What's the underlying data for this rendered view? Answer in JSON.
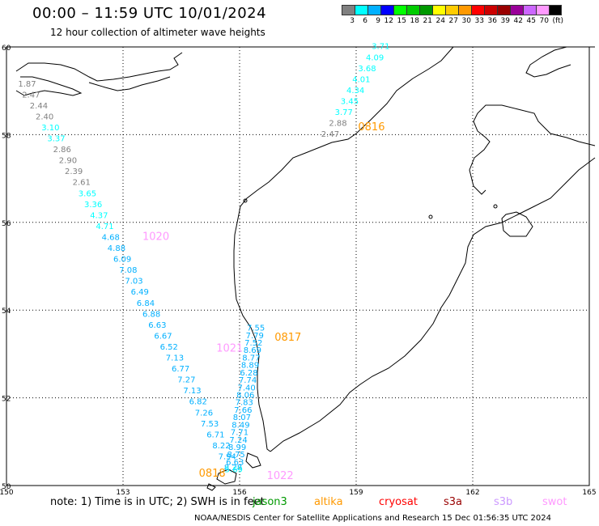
{
  "header": {
    "title": "00:00 – 11:59 UTC 10/01/2024",
    "subtitle": "12 hour collection of altimeter wave heights"
  },
  "legend": {
    "colors": [
      "#808080",
      "#00ffff",
      "#00b0ff",
      "#0000ff",
      "#00ff00",
      "#00cc00",
      "#009900",
      "#ffff00",
      "#ffcc00",
      "#ff9900",
      "#ff0000",
      "#cc0000",
      "#990000",
      "#990099",
      "#cc66ff",
      "#ff99ff",
      "#000000"
    ],
    "labels": [
      "3",
      "6",
      "9",
      "12",
      "15",
      "18",
      "21",
      "24",
      "27",
      "30",
      "33",
      "36",
      "39",
      "42",
      "45",
      "70",
      "(ft)"
    ]
  },
  "map": {
    "lon_ticks": [
      "150",
      "153",
      "156",
      "159",
      "162",
      "165"
    ],
    "lat_ticks": [
      "60",
      "58",
      "56",
      "54",
      "52",
      "50"
    ]
  },
  "passes": [
    {
      "time": "0816",
      "color": "#ff9900",
      "lon": 159.05,
      "lat": 58.1
    },
    {
      "time": "1020",
      "color": "#ff99ff",
      "lon": 153.5,
      "lat": 55.6
    },
    {
      "time": "0817",
      "color": "#ff9900",
      "lon": 156.9,
      "lat": 53.3
    },
    {
      "time": "1021",
      "color": "#ff99ff",
      "lon": 155.4,
      "lat": 53.05
    },
    {
      "time": "0818",
      "color": "#ff9900",
      "lon": 154.95,
      "lat": 50.2
    },
    {
      "time": "1022",
      "color": "#ff99ff",
      "lon": 156.7,
      "lat": 50.15
    }
  ],
  "swh": [
    {
      "v": "3.71",
      "c": "#00ffff",
      "lon": 159.4,
      "lat": 59.95
    },
    {
      "v": "4.09",
      "c": "#00ffff",
      "lon": 159.25,
      "lat": 59.7
    },
    {
      "v": "3.68",
      "c": "#00ffff",
      "lon": 159.05,
      "lat": 59.45
    },
    {
      "v": "4.01",
      "c": "#00ffff",
      "lon": 158.9,
      "lat": 59.2
    },
    {
      "v": "4.34",
      "c": "#00ffff",
      "lon": 158.75,
      "lat": 58.95
    },
    {
      "v": "3.45",
      "c": "#00ffff",
      "lon": 158.6,
      "lat": 58.7
    },
    {
      "v": "3.77",
      "c": "#00ffff",
      "lon": 158.45,
      "lat": 58.45
    },
    {
      "v": "2.88",
      "c": "#808080",
      "lon": 158.3,
      "lat": 58.2
    },
    {
      "v": "2.47",
      "c": "#808080",
      "lon": 158.1,
      "lat": 57.95
    },
    {
      "v": "1.87",
      "c": "#808080",
      "lon": 150.3,
      "lat": 59.1
    },
    {
      "v": "2.47",
      "c": "#808080",
      "lon": 150.4,
      "lat": 58.85
    },
    {
      "v": "2.44",
      "c": "#808080",
      "lon": 150.6,
      "lat": 58.6
    },
    {
      "v": "2.40",
      "c": "#808080",
      "lon": 150.75,
      "lat": 58.35
    },
    {
      "v": "3.10",
      "c": "#00ffff",
      "lon": 150.9,
      "lat": 58.1
    },
    {
      "v": "3.37",
      "c": "#00ffff",
      "lon": 151.05,
      "lat": 57.85
    },
    {
      "v": "2.86",
      "c": "#808080",
      "lon": 151.2,
      "lat": 57.6
    },
    {
      "v": "2.90",
      "c": "#808080",
      "lon": 151.35,
      "lat": 57.35
    },
    {
      "v": "2.39",
      "c": "#808080",
      "lon": 151.5,
      "lat": 57.1
    },
    {
      "v": "2.61",
      "c": "#808080",
      "lon": 151.7,
      "lat": 56.85
    },
    {
      "v": "3.65",
      "c": "#00ffff",
      "lon": 151.85,
      "lat": 56.6
    },
    {
      "v": "3.36",
      "c": "#00ffff",
      "lon": 152.0,
      "lat": 56.35
    },
    {
      "v": "4.37",
      "c": "#00ffff",
      "lon": 152.15,
      "lat": 56.1
    },
    {
      "v": "4.71",
      "c": "#00ffff",
      "lon": 152.3,
      "lat": 55.85
    },
    {
      "v": "4.68",
      "c": "#00b0ff",
      "lon": 152.45,
      "lat": 55.6
    },
    {
      "v": "4.88",
      "c": "#00b0ff",
      "lon": 152.6,
      "lat": 55.35
    },
    {
      "v": "6.09",
      "c": "#00b0ff",
      "lon": 152.75,
      "lat": 55.1
    },
    {
      "v": "7.08",
      "c": "#00b0ff",
      "lon": 152.9,
      "lat": 54.85
    },
    {
      "v": "7.03",
      "c": "#00b0ff",
      "lon": 153.05,
      "lat": 54.6
    },
    {
      "v": "6.49",
      "c": "#00b0ff",
      "lon": 153.2,
      "lat": 54.35
    },
    {
      "v": "6.84",
      "c": "#00b0ff",
      "lon": 153.35,
      "lat": 54.1
    },
    {
      "v": "6.88",
      "c": "#00b0ff",
      "lon": 153.5,
      "lat": 53.85
    },
    {
      "v": "6.63",
      "c": "#00b0ff",
      "lon": 153.65,
      "lat": 53.6
    },
    {
      "v": "6.67",
      "c": "#00b0ff",
      "lon": 153.8,
      "lat": 53.35
    },
    {
      "v": "6.52",
      "c": "#00b0ff",
      "lon": 153.95,
      "lat": 53.1
    },
    {
      "v": "7.13",
      "c": "#00b0ff",
      "lon": 154.1,
      "lat": 52.85
    },
    {
      "v": "6.77",
      "c": "#00b0ff",
      "lon": 154.25,
      "lat": 52.6
    },
    {
      "v": "7.27",
      "c": "#00b0ff",
      "lon": 154.4,
      "lat": 52.35
    },
    {
      "v": "7.13",
      "c": "#00b0ff",
      "lon": 154.55,
      "lat": 52.1
    },
    {
      "v": "6.82",
      "c": "#00b0ff",
      "lon": 154.7,
      "lat": 51.85
    },
    {
      "v": "7.26",
      "c": "#00b0ff",
      "lon": 154.85,
      "lat": 51.6
    },
    {
      "v": "7.53",
      "c": "#00b0ff",
      "lon": 155.0,
      "lat": 51.35
    },
    {
      "v": "6.71",
      "c": "#00b0ff",
      "lon": 155.15,
      "lat": 51.1
    },
    {
      "v": "8.22",
      "c": "#00b0ff",
      "lon": 155.3,
      "lat": 50.85
    },
    {
      "v": "7.94",
      "c": "#00b0ff",
      "lon": 155.45,
      "lat": 50.6
    },
    {
      "v": "8.28",
      "c": "#00b0ff",
      "lon": 155.6,
      "lat": 50.35
    },
    {
      "v": "7.55",
      "c": "#00b0ff",
      "lon": 155.75,
      "lat": 50.1
    },
    {
      "v": "7.79",
      "c": "#00b0ff",
      "lon": 155.9,
      "lat": 49.85
    },
    {
      "v": "7.52",
      "c": "#00b0ff",
      "lon": 156.05,
      "lat": 49.6
    },
    {
      "v": "8.69",
      "c": "#00b0ff",
      "lon": 156.2,
      "lat": 49.35
    },
    {
      "v": "8.77",
      "c": "#00b0ff",
      "lon": 156.35,
      "lat": 49.1
    },
    {
      "v": "8.89",
      "c": "#00b0ff",
      "lon": 156.5,
      "lat": 48.85
    },
    {
      "v": "6.28",
      "c": "#00b0ff",
      "lon": 156.65,
      "lat": 48.6
    },
    {
      "v": "7.74",
      "c": "#00b0ff",
      "lon": 156.8,
      "lat": 48.35
    },
    {
      "v": "7.40",
      "c": "#00b0ff",
      "lon": 156.95,
      "lat": 48.1
    },
    {
      "v": "8.06",
      "c": "#00b0ff",
      "lon": 157.1,
      "lat": 47.85
    },
    {
      "v": "7.83",
      "c": "#00b0ff",
      "lon": 157.25,
      "lat": 47.6
    },
    {
      "v": "7.66",
      "c": "#00b0ff",
      "lon": 157.4,
      "lat": 47.35
    },
    {
      "v": "8.07",
      "c": "#00b0ff",
      "lon": 157.55,
      "lat": 47.1
    },
    {
      "v": "8.49",
      "c": "#00b0ff",
      "lon": 157.7,
      "lat": 46.85
    },
    {
      "v": "7.71",
      "c": "#00b0ff",
      "lon": 157.85,
      "lat": 46.6
    },
    {
      "v": "7.24",
      "c": "#00b0ff",
      "lon": 158.0,
      "lat": 46.35
    },
    {
      "v": "8.99",
      "c": "#00b0ff",
      "lon": 158.15,
      "lat": 46.1
    },
    {
      "v": "8.75",
      "c": "#00b0ff",
      "lon": 158.3,
      "lat": 45.85
    },
    {
      "v": "6.63",
      "c": "#00b0ff",
      "lon": 158.45,
      "lat": 45.6
    },
    {
      "v": "5.69",
      "c": "#00ffff",
      "lon": 158.6,
      "lat": 45.35
    }
  ],
  "footer": {
    "note": "note:  1) Time is in UTC;  2) SWH is in feet",
    "missions": [
      {
        "name": "jason3",
        "color": "#009900"
      },
      {
        "name": "altika",
        "color": "#ff9900"
      },
      {
        "name": "cryosat",
        "color": "#ff0000"
      },
      {
        "name": "s3a",
        "color": "#990000"
      },
      {
        "name": "s3b",
        "color": "#cc99ff"
      },
      {
        "name": "swot",
        "color": "#ff99ff"
      }
    ],
    "credit": "NOAA/NESDIS Center for Satellite Applications and Research     15 Dec 01:56:35 UTC 2024"
  }
}
